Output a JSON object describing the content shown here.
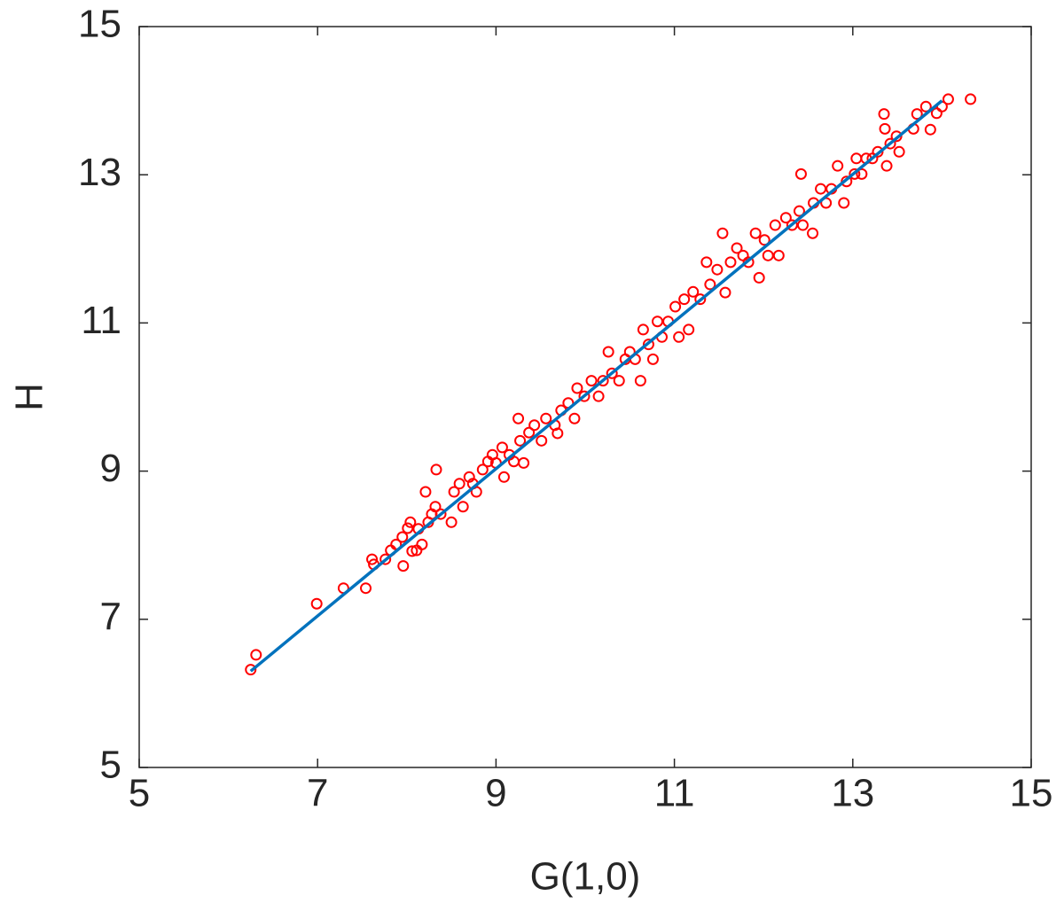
{
  "chart_data": {
    "type": "scatter",
    "x_label": "G(1,0)",
    "y_label": "H",
    "xlim": [
      5,
      15
    ],
    "ylim": [
      5,
      15
    ],
    "xticks": [
      5,
      7,
      9,
      11,
      13,
      15
    ],
    "yticks": [
      5,
      7,
      9,
      11,
      13,
      15
    ],
    "series": [
      {
        "type": "scatter",
        "color": "#ff0000",
        "x": [
          6.25,
          6.31,
          6.99,
          7.29,
          7.54,
          7.61,
          7.63,
          7.76,
          7.82,
          7.88,
          7.95,
          7.96,
          8.01,
          8.04,
          8.06,
          8.11,
          8.13,
          8.17,
          8.21,
          8.24,
          8.28,
          8.33,
          8.32,
          8.38,
          8.5,
          8.53,
          8.59,
          8.63,
          8.7,
          8.74,
          8.78,
          8.85,
          8.91,
          8.96,
          9.0,
          9.07,
          9.09,
          9.15,
          9.2,
          9.25,
          9.27,
          9.31,
          9.37,
          9.43,
          9.51,
          9.56,
          9.66,
          9.69,
          9.73,
          9.81,
          9.88,
          9.91,
          9.99,
          10.07,
          10.15,
          10.2,
          10.26,
          10.3,
          10.38,
          10.45,
          10.5,
          10.56,
          10.62,
          10.65,
          10.71,
          10.76,
          10.81,
          10.86,
          10.93,
          11.01,
          11.05,
          11.11,
          11.16,
          11.21,
          11.29,
          11.36,
          11.4,
          11.48,
          11.54,
          11.57,
          11.63,
          11.7,
          11.77,
          11.83,
          11.91,
          11.95,
          12.01,
          12.05,
          12.13,
          12.17,
          12.25,
          12.32,
          12.4,
          12.42,
          12.44,
          12.55,
          12.56,
          12.64,
          12.7,
          12.76,
          12.83,
          12.9,
          12.93,
          13.02,
          13.04,
          13.1,
          13.15,
          13.22,
          13.28,
          13.35,
          13.36,
          13.38,
          13.42,
          13.49,
          13.52,
          13.68,
          13.72,
          13.82,
          13.87,
          13.94,
          14.0,
          14.07,
          14.32
        ],
        "values": [
          6.32,
          6.52,
          7.21,
          7.42,
          7.42,
          7.81,
          7.74,
          7.81,
          7.93,
          8.01,
          8.11,
          7.72,
          8.23,
          8.31,
          7.92,
          7.93,
          8.22,
          8.01,
          8.72,
          8.31,
          8.42,
          9.02,
          8.52,
          8.42,
          8.31,
          8.72,
          8.83,
          8.52,
          8.92,
          8.83,
          8.72,
          9.02,
          9.13,
          9.22,
          9.11,
          9.32,
          8.92,
          9.22,
          9.13,
          9.71,
          9.41,
          9.11,
          9.52,
          9.62,
          9.41,
          9.71,
          9.62,
          9.51,
          9.82,
          9.92,
          9.71,
          10.12,
          10.01,
          10.22,
          10.01,
          10.22,
          10.61,
          10.32,
          10.22,
          10.51,
          10.61,
          10.51,
          10.22,
          10.91,
          10.71,
          10.51,
          11.02,
          10.81,
          11.02,
          11.22,
          10.81,
          11.32,
          10.91,
          11.42,
          11.32,
          11.82,
          11.52,
          11.72,
          12.21,
          11.41,
          11.82,
          12.01,
          11.91,
          11.82,
          12.21,
          11.61,
          12.12,
          11.91,
          12.32,
          11.91,
          12.42,
          12.32,
          12.51,
          13.01,
          12.32,
          12.21,
          12.62,
          12.81,
          12.62,
          12.81,
          13.12,
          12.62,
          12.91,
          13.01,
          13.22,
          13.01,
          13.22,
          13.22,
          13.31,
          13.82,
          13.62,
          13.12,
          13.42,
          13.52,
          13.31,
          13.62,
          13.82,
          13.92,
          13.61,
          13.83,
          13.92,
          14.02,
          14.02
        ]
      },
      {
        "type": "line",
        "color": "#0072bd",
        "x": [
          6.25,
          14.0
        ],
        "values": [
          6.3,
          14.0
        ]
      }
    ]
  }
}
